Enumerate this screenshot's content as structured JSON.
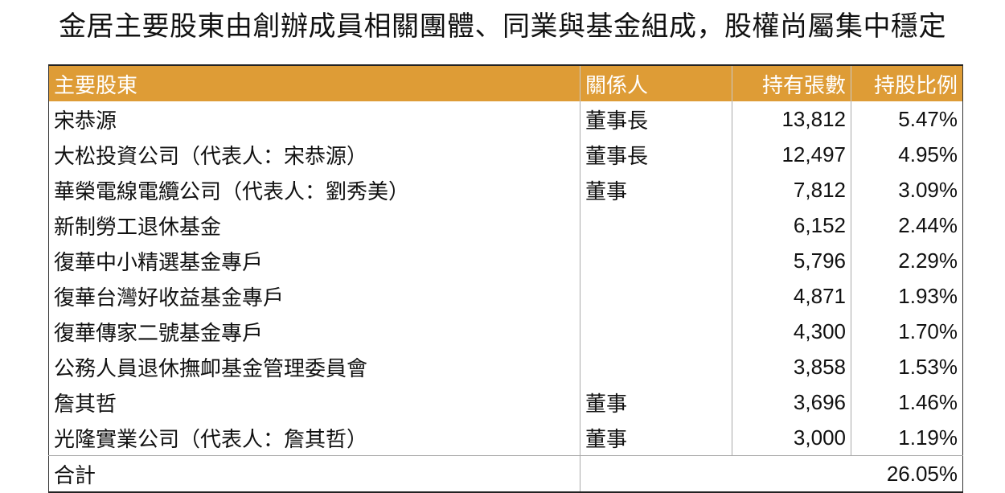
{
  "title": "金居主要股東由創辦成員相關團體、同業與基金組成，股權尚屬集中穩定",
  "header_color": "#DE9C36",
  "table": {
    "headers": [
      "主要股東",
      "關係人",
      "持有張數",
      "持股比例"
    ],
    "rows": [
      [
        "宋恭源",
        "董事長",
        "13,812",
        "5.47%"
      ],
      [
        "大松投資公司（代表人：宋恭源）",
        "董事長",
        "12,497",
        "4.95%"
      ],
      [
        "華榮電線電纜公司（代表人：劉秀美）",
        "董事",
        "7,812",
        "3.09%"
      ],
      [
        "新制勞工退休基金",
        "",
        "6,152",
        "2.44%"
      ],
      [
        "復華中小精選基金專戶",
        "",
        "5,796",
        "2.29%"
      ],
      [
        "復華台灣好收益基金專戶",
        "",
        "4,871",
        "1.93%"
      ],
      [
        "復華傳家二號基金專戶",
        "",
        "4,300",
        "1.70%"
      ],
      [
        "公務人員退休撫卹基金管理委員會",
        "",
        "3,858",
        "1.53%"
      ],
      [
        "詹其哲",
        "董事",
        "3,696",
        "1.46%"
      ],
      [
        "光隆實業公司（代表人：詹其哲）",
        "董事",
        "3,000",
        "1.19%"
      ]
    ],
    "total": {
      "label": "合計",
      "value": "26.05%"
    }
  }
}
